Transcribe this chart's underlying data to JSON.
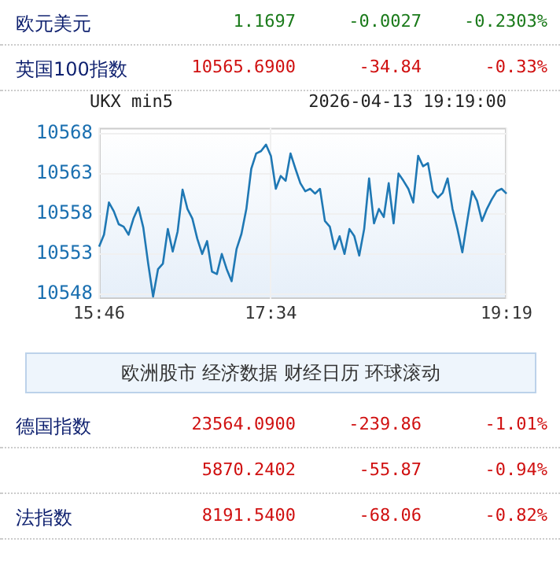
{
  "chart_data": {
    "type": "line",
    "title": "UKX min5",
    "subtitle": "2026-04-13 19:19:00",
    "categories": [
      "15:46",
      null,
      null,
      null,
      null,
      null,
      null,
      null,
      null,
      null,
      null,
      null,
      null,
      null,
      null,
      null,
      null,
      null,
      null,
      null,
      null,
      null,
      null,
      null,
      null,
      null,
      null,
      null,
      null,
      null,
      null,
      null,
      null,
      null,
      null,
      "17:34",
      null,
      null,
      null,
      null,
      null,
      null,
      null,
      null,
      null,
      null,
      null,
      null,
      null,
      null,
      null,
      null,
      null,
      null,
      null,
      null,
      null,
      null,
      null,
      null,
      null,
      null,
      null,
      null,
      null,
      null,
      null,
      null,
      null,
      null,
      null,
      null,
      null,
      null,
      null,
      null,
      null,
      null,
      null,
      null,
      null,
      null,
      null,
      "19:19"
    ],
    "series": [
      {
        "color": "#1f78b4",
        "values": [
          10553.9,
          10555.4,
          10559.4,
          10558.3,
          10556.7,
          10556.4,
          10555.4,
          10557.4,
          10558.8,
          10556.3,
          10551.8,
          10547.7,
          10551.1,
          10551.8,
          10556.1,
          10553.3,
          10555.8,
          10561.0,
          10558.6,
          10557.4,
          10554.9,
          10553.0,
          10554.6,
          10550.8,
          10550.5,
          10553.0,
          10551.1,
          10549.6,
          10553.6,
          10555.5,
          10558.6,
          10563.6,
          10565.5,
          10565.8,
          10566.6,
          10565.2,
          10561.1,
          10562.7,
          10562.1,
          10565.5,
          10563.6,
          10561.8,
          10560.8,
          10561.1,
          10560.5,
          10561.1,
          10557.1,
          10556.4,
          10553.6,
          10555.2,
          10553.0,
          10556.1,
          10555.2,
          10552.8,
          10556.1,
          10562.4,
          10556.8,
          10558.6,
          10557.6,
          10561.8,
          10556.8,
          10563.0,
          10562.1,
          10561.1,
          10559.4,
          10565.2,
          10563.9,
          10564.3,
          10560.8,
          10560.0,
          10560.6,
          10562.4,
          10558.6,
          10556.1,
          10553.2,
          10557.1,
          10560.8,
          10559.6,
          10557.1,
          10558.6,
          10559.8,
          10560.8,
          10561.1,
          10560.5
        ]
      }
    ],
    "ylim": [
      10547.4,
      10568.7
    ],
    "yticks": [
      10548,
      10553,
      10558,
      10563,
      10568
    ],
    "grid": true,
    "legend": false,
    "annotations": [
      "欧元美元",
      "1.1697",
      "-0.0027",
      "-0.2303%",
      "英国100指数",
      "10565.6900",
      "-34.84",
      "-0.33%",
      "欧洲股市 经济数据 财经日历 环球滚动",
      "德国指数",
      "23564.0900",
      "-239.86",
      "-1.01%",
      null,
      "5870.2402",
      "-55.87",
      "-0.94%",
      "法指数",
      "8191.5400",
      "-68.06",
      "-0.82%"
    ]
  }
}
